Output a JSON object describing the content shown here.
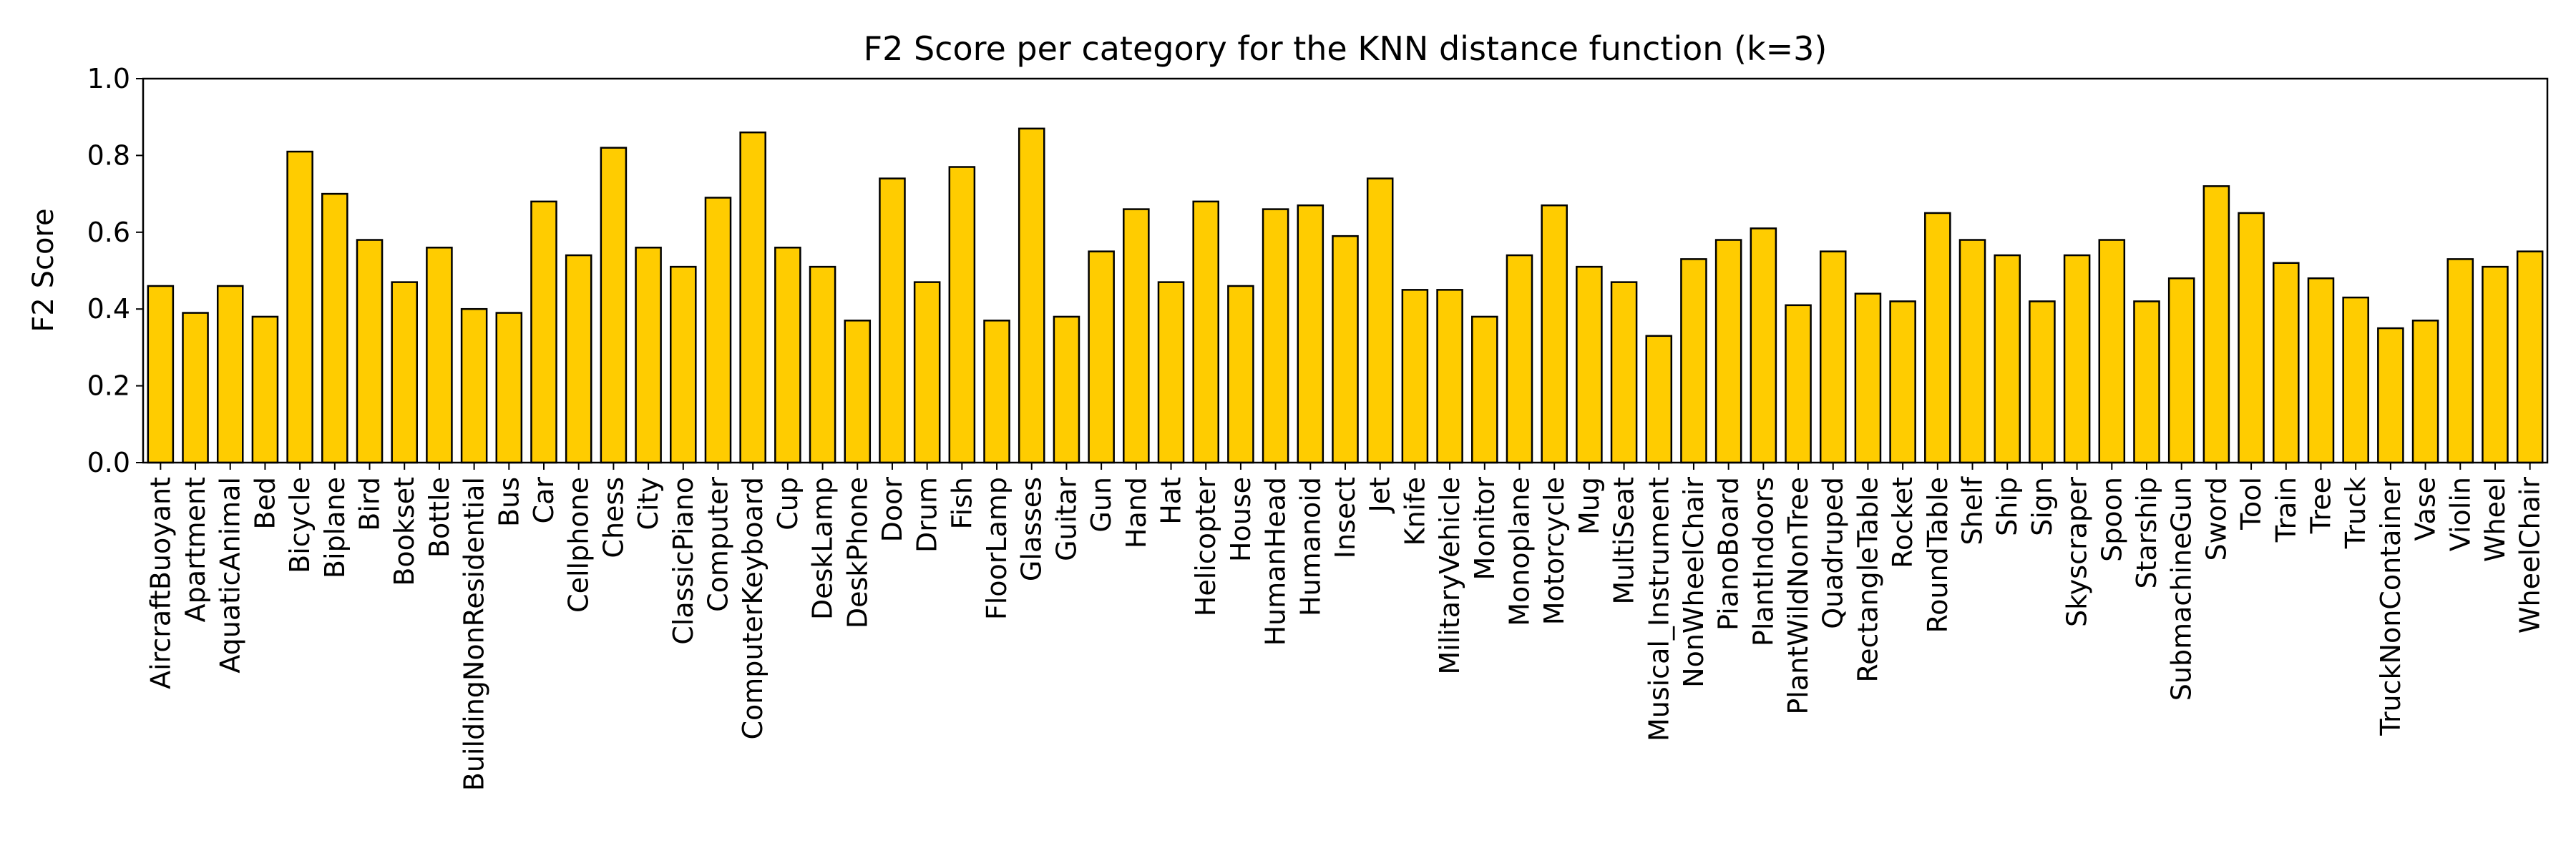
{
  "chart_data": {
    "type": "bar",
    "title": "F2 Score per category for the KNN distance function (k=3)",
    "xlabel": "",
    "ylabel": "F2 Score",
    "ylim": [
      0,
      1.0
    ],
    "yticks": [
      "0.0",
      "0.2",
      "0.4",
      "0.6",
      "0.8",
      "1.0"
    ],
    "grid": false,
    "bar_color": "#FFCC00",
    "edge_color": "#000000",
    "categories": [
      "AircraftBuoyant",
      "Apartment",
      "AquaticAnimal",
      "Bed",
      "Bicycle",
      "Biplane",
      "Bird",
      "Bookset",
      "Bottle",
      "BuildingNonResidential",
      "Bus",
      "Car",
      "Cellphone",
      "Chess",
      "City",
      "ClassicPiano",
      "Computer",
      "ComputerKeyboard",
      "Cup",
      "DeskLamp",
      "DeskPhone",
      "Door",
      "Drum",
      "Fish",
      "FloorLamp",
      "Glasses",
      "Guitar",
      "Gun",
      "Hand",
      "Hat",
      "Helicopter",
      "House",
      "HumanHead",
      "Humanoid",
      "Insect",
      "Jet",
      "Knife",
      "MilitaryVehicle",
      "Monitor",
      "Monoplane",
      "Motorcycle",
      "Mug",
      "MultiSeat",
      "Musical_Instrument",
      "NonWheelChair",
      "PianoBoard",
      "PlantIndoors",
      "PlantWildNonTree",
      "Quadruped",
      "RectangleTable",
      "Rocket",
      "RoundTable",
      "Shelf",
      "Ship",
      "Sign",
      "Skyscraper",
      "Spoon",
      "Starship",
      "SubmachineGun",
      "Sword",
      "Tool",
      "Train",
      "Tree",
      "Truck",
      "TruckNonContainer",
      "Vase",
      "Violin",
      "Wheel",
      "WheelChair"
    ],
    "values": [
      0.46,
      0.39,
      0.46,
      0.38,
      0.81,
      0.7,
      0.58,
      0.47,
      0.56,
      0.4,
      0.39,
      0.68,
      0.54,
      0.82,
      0.56,
      0.51,
      0.69,
      0.86,
      0.56,
      0.51,
      0.37,
      0.74,
      0.47,
      0.77,
      0.37,
      0.87,
      0.38,
      0.55,
      0.66,
      0.47,
      0.68,
      0.46,
      0.66,
      0.67,
      0.59,
      0.74,
      0.45,
      0.45,
      0.38,
      0.54,
      0.67,
      0.51,
      0.47,
      0.33,
      0.53,
      0.58,
      0.61,
      0.41,
      0.55,
      0.44,
      0.42,
      0.65,
      0.58,
      0.54,
      0.42,
      0.54,
      0.58,
      0.42,
      0.48,
      0.72,
      0.65,
      0.52,
      0.48,
      0.43,
      0.35,
      0.37,
      0.53,
      0.51,
      0.55
    ]
  }
}
